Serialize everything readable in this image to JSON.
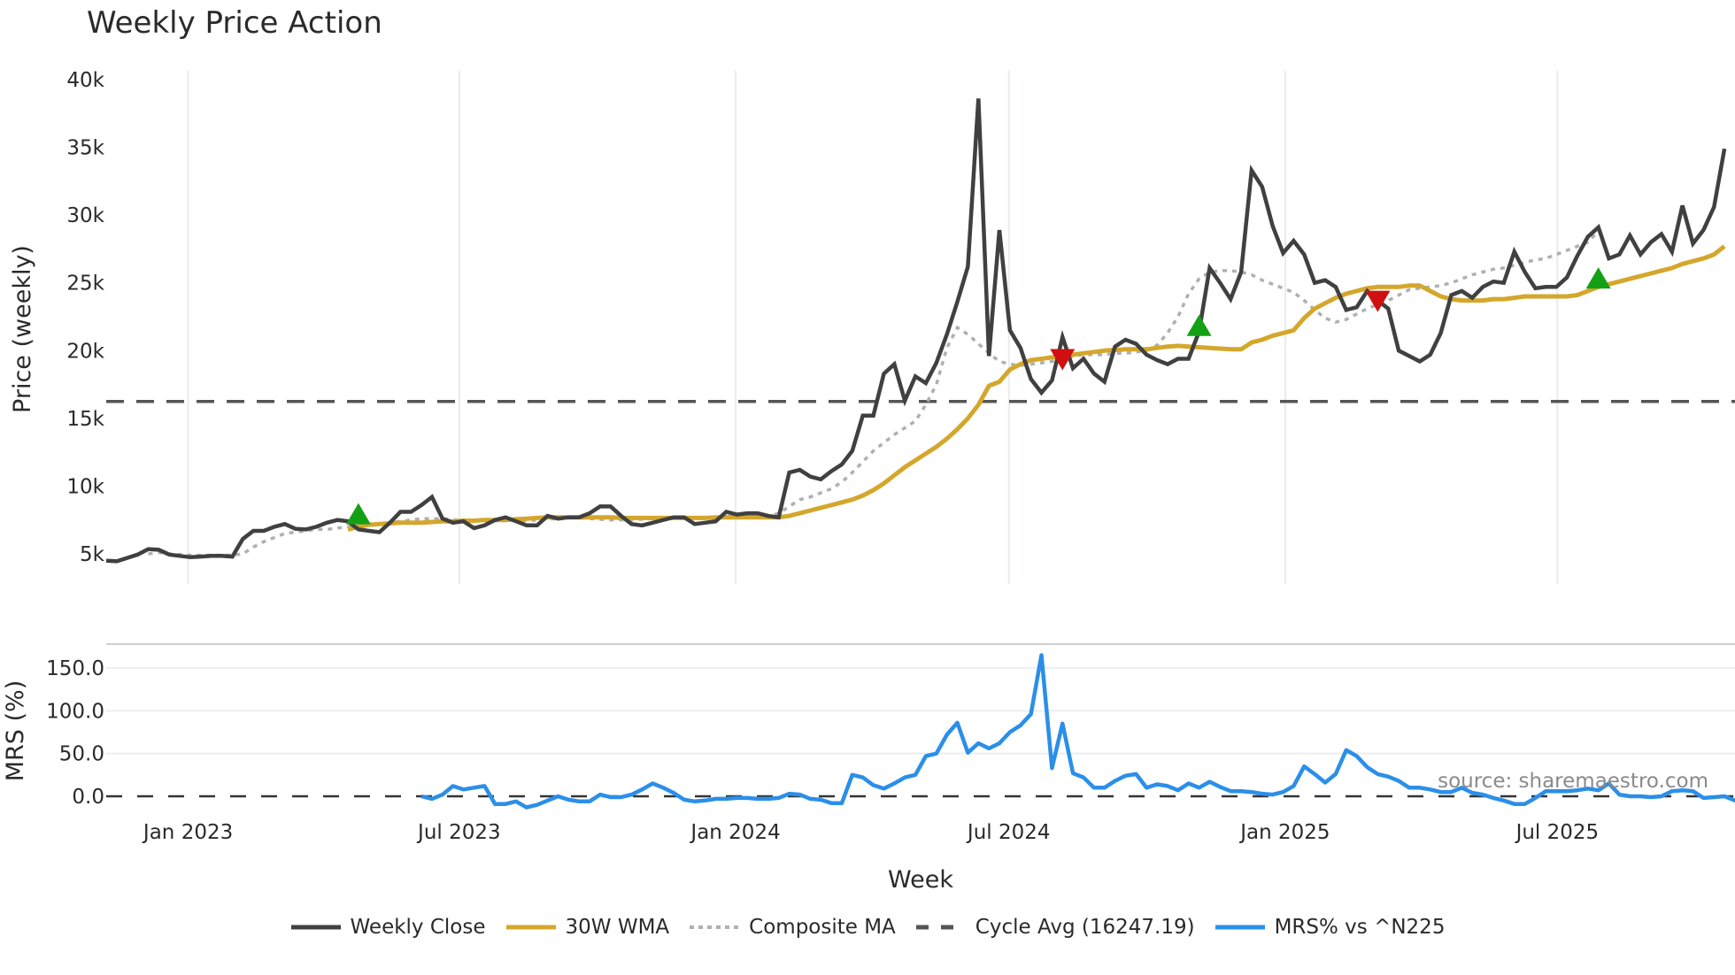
{
  "chart_data": {
    "type": "line",
    "title": "Weekly Price Action",
    "panels": [
      {
        "name": "price",
        "ylabel": "Price (weekly)",
        "ylim": [
          3000,
          41000
        ],
        "yticks": [
          5000,
          10000,
          15000,
          20000,
          25000,
          30000,
          35000,
          40000
        ],
        "ytick_labels": [
          "5k",
          "10k",
          "15k",
          "20k",
          "25k",
          "30k",
          "35k",
          "40k"
        ],
        "grid": "vertical",
        "reference_line": {
          "name": "Cycle Avg (16247.19)",
          "value": 16247.19,
          "style": "dashed",
          "color": "#555555"
        }
      },
      {
        "name": "mrs",
        "ylabel": "MRS (%)",
        "ylim": [
          -20,
          180
        ],
        "yticks": [
          0,
          50,
          100,
          150
        ],
        "ytick_labels": [
          "0.0",
          "50.0",
          "100.0",
          "150.0"
        ],
        "grid": "horizontal",
        "reference_line": {
          "value": 0,
          "style": "dashed",
          "color": "#333333"
        }
      }
    ],
    "xlabel": "Week",
    "x_start": "2022-11-07",
    "x_weeks": 156,
    "xtick_labels": [
      "Jan 2023",
      "Jul 2023",
      "Jan 2024",
      "Jul 2024",
      "Jan 2025",
      "Jul 2025"
    ],
    "xtick_week_index": [
      7.8,
      33.6,
      59.9,
      85.9,
      112.2,
      138.1
    ],
    "series": [
      {
        "name": "Weekly Close",
        "color": "#404040",
        "panel": "price",
        "start_index": 0,
        "values": [
          4500,
          4450,
          4700,
          4950,
          5350,
          5300,
          4950,
          4850,
          4750,
          4800,
          4850,
          4850,
          4800,
          6100,
          6700,
          6700,
          7000,
          7200,
          6850,
          6800,
          7000,
          7300,
          7500,
          7400,
          6800,
          6700,
          6600,
          7300,
          8100,
          8100,
          8600,
          9200,
          7600,
          7300,
          7400,
          6900,
          7100,
          7500,
          7700,
          7400,
          7100,
          7100,
          7800,
          7600,
          7700,
          7700,
          8000,
          8500,
          8500,
          7800,
          7200,
          7100,
          7300,
          7500,
          7700,
          7700,
          7200,
          7300,
          7400,
          8100,
          7900,
          8000,
          8000,
          7800,
          7700,
          11000,
          11200,
          10700,
          10500,
          11100,
          11600,
          12600,
          15200,
          15200,
          18300,
          19000,
          16300,
          18100,
          17600,
          19100,
          21200,
          23600,
          26200,
          38600,
          19600,
          28900,
          21500,
          20200,
          17900,
          16900,
          17800,
          21000,
          18700,
          19400,
          18300,
          17700,
          20300,
          20800,
          20500,
          19700,
          19300,
          19000,
          19400,
          19400,
          21400,
          26100,
          25000,
          23800,
          25800,
          33300,
          32100,
          29200,
          27200,
          28100,
          27100,
          25000,
          25200,
          24700,
          23000,
          23200,
          24400,
          23700,
          23100,
          20000,
          19600,
          19200,
          19700,
          21300,
          24100,
          24400,
          23900,
          24700,
          25100,
          25000,
          27300,
          25800,
          24600,
          24700,
          24700,
          25400,
          27000,
          28400,
          29100,
          26800,
          27100,
          28500,
          27100,
          28000,
          28600,
          27300,
          30700,
          27900,
          28900,
          30600,
          34900
        ]
      },
      {
        "name": "30W WMA",
        "color": "#D4A72C",
        "panel": "price",
        "start_index": 23,
        "values": [
          6800,
          7000,
          7150,
          7200,
          7250,
          7300,
          7300,
          7300,
          7350,
          7400,
          7400,
          7450,
          7450,
          7500,
          7500,
          7500,
          7550,
          7600,
          7650,
          7700,
          7700,
          7700,
          7700,
          7700,
          7700,
          7700,
          7650,
          7650,
          7650,
          7650,
          7650,
          7650,
          7650,
          7650,
          7650,
          7700,
          7700,
          7700,
          7700,
          7700,
          7700,
          7700,
          7800,
          8000,
          8200,
          8400,
          8600,
          8800,
          9000,
          9300,
          9700,
          10200,
          10800,
          11400,
          11900,
          12400,
          12900,
          13500,
          14200,
          15000,
          16000,
          17400,
          17700,
          18600,
          19000,
          19300,
          19400,
          19500,
          19600,
          19700,
          19800,
          19900,
          20000,
          20050,
          20100,
          20100,
          20100,
          20200,
          20300,
          20350,
          20300,
          20250,
          20200,
          20150,
          20100,
          20100,
          20600,
          20800,
          21100,
          21300,
          21500,
          22400,
          23100,
          23500,
          23900,
          24200,
          24400,
          24600,
          24700,
          24700,
          24700,
          24800,
          24800,
          24400,
          24000,
          23800,
          23700,
          23700,
          23700,
          23800,
          23800,
          23900,
          24000,
          24000,
          24000,
          24000,
          24000,
          24100,
          24400,
          24700,
          24900,
          25100,
          25300,
          25500,
          25700,
          25900,
          26100,
          26400,
          26600,
          26800,
          27100,
          27700
        ]
      },
      {
        "name": "Composite MA",
        "color": "#B0B0B0",
        "panel": "price",
        "start_index": 4,
        "values": [
          5000,
          5100,
          5000,
          4950,
          4900,
          4900,
          4900,
          4900,
          4900,
          5000,
          5500,
          5900,
          6200,
          6500,
          6600,
          6700,
          6800,
          6800,
          6900,
          7000,
          7100,
          7100,
          7200,
          7300,
          7400,
          7500,
          7600,
          7600,
          7600,
          7500,
          7500,
          7450,
          7450,
          7450,
          7450,
          7450,
          7450,
          7500,
          7550,
          7600,
          7650,
          7650,
          7600,
          7550,
          7500,
          7500,
          7500,
          7550,
          7600,
          7700,
          7700,
          7700,
          7700,
          7700,
          7700,
          7750,
          7800,
          7800,
          7750,
          7750,
          8000,
          8500,
          9000,
          9200,
          9500,
          9800,
          10300,
          11000,
          11800,
          12600,
          13200,
          13800,
          14300,
          14800,
          16000,
          17500,
          20200,
          21700,
          21200,
          20500,
          19800,
          19200,
          19000,
          18900,
          19000,
          19100,
          19200,
          19400,
          19600,
          19700,
          19700,
          19700,
          19800,
          19800,
          19900,
          20000,
          20400,
          21300,
          22500,
          24200,
          25300,
          25800,
          25900,
          25900,
          25800,
          25600,
          25200,
          24900,
          24600,
          24300,
          23700,
          23000,
          22400,
          22100,
          22300,
          22700,
          23100,
          23400,
          23700,
          24100,
          24500,
          24600,
          24700,
          24800,
          25000,
          25300,
          25600,
          25800,
          26000,
          26100,
          26300,
          26500,
          26700,
          26800,
          27100,
          27400,
          27700,
          28000,
          28800
        ]
      },
      {
        "name": "MRS% vs ^N225",
        "color": "#2B8FE8",
        "panel": "mrs",
        "start_index": 30,
        "values": [
          0,
          -3,
          2,
          12,
          8,
          10,
          12,
          -9,
          -9,
          -6,
          -13,
          -10,
          -5,
          0,
          -4,
          -6,
          -6,
          2,
          -1,
          -1,
          2,
          8,
          15,
          10,
          4,
          -4,
          -6,
          -5,
          -3,
          -3,
          -2,
          -2,
          -3,
          -3,
          -2,
          3,
          2,
          -3,
          -4,
          -8,
          -8,
          25,
          22,
          13,
          9,
          15,
          22,
          25,
          47,
          50,
          72,
          86,
          51,
          62,
          56,
          62,
          75,
          83,
          96,
          165,
          33,
          85,
          27,
          22,
          10,
          10,
          18,
          24,
          26,
          10,
          14,
          12,
          7,
          15,
          10,
          17,
          11,
          6,
          6,
          5,
          3,
          2,
          5,
          12,
          35,
          26,
          16,
          26,
          54,
          47,
          34,
          26,
          23,
          18,
          10,
          10,
          8,
          5,
          5,
          10,
          4,
          2,
          -2,
          -5,
          -9,
          -9,
          -2,
          6,
          6,
          6,
          7,
          9,
          7,
          15,
          2,
          0,
          0,
          -1,
          0,
          6,
          7,
          6,
          -2,
          -1,
          0,
          -5,
          -3,
          -4,
          -3,
          3,
          -5,
          -5,
          -2,
          8
        ]
      }
    ],
    "markers": [
      {
        "type": "buy",
        "shape": "triangle-up",
        "color": "#14A014",
        "week_index": 24,
        "value": 7900
      },
      {
        "type": "sell",
        "shape": "triangle-down",
        "color": "#D01010",
        "week_index": 91,
        "value": 19400
      },
      {
        "type": "buy",
        "shape": "triangle-up",
        "color": "#14A014",
        "week_index": 104,
        "value": 21800
      },
      {
        "type": "sell",
        "shape": "triangle-down",
        "color": "#D01010",
        "week_index": 121,
        "value": 23700
      },
      {
        "type": "buy",
        "shape": "triangle-up",
        "color": "#14A014",
        "week_index": 142,
        "value": 25300
      }
    ],
    "annotations": [
      "source: sharemaestro.com"
    ],
    "legend": {
      "position": "bottom-center"
    }
  },
  "header": {
    "title": "Weekly Price Action"
  },
  "axes": {
    "price_ylabel": "Price (weekly)",
    "mrs_ylabel": "MRS (%)",
    "xlabel": "Week"
  },
  "watermark": "source: sharemaestro.com",
  "legend": [
    {
      "label": "Weekly Close",
      "color": "#404040",
      "style": "solid"
    },
    {
      "label": "30W WMA",
      "color": "#D4A72C",
      "style": "solid"
    },
    {
      "label": "Composite MA",
      "color": "#B0B0B0",
      "style": "dotted"
    },
    {
      "label": "Cycle Avg (16247.19)",
      "color": "#555555",
      "style": "dashed"
    },
    {
      "label": "MRS% vs ^N225",
      "color": "#2B8FE8",
      "style": "solid"
    }
  ]
}
